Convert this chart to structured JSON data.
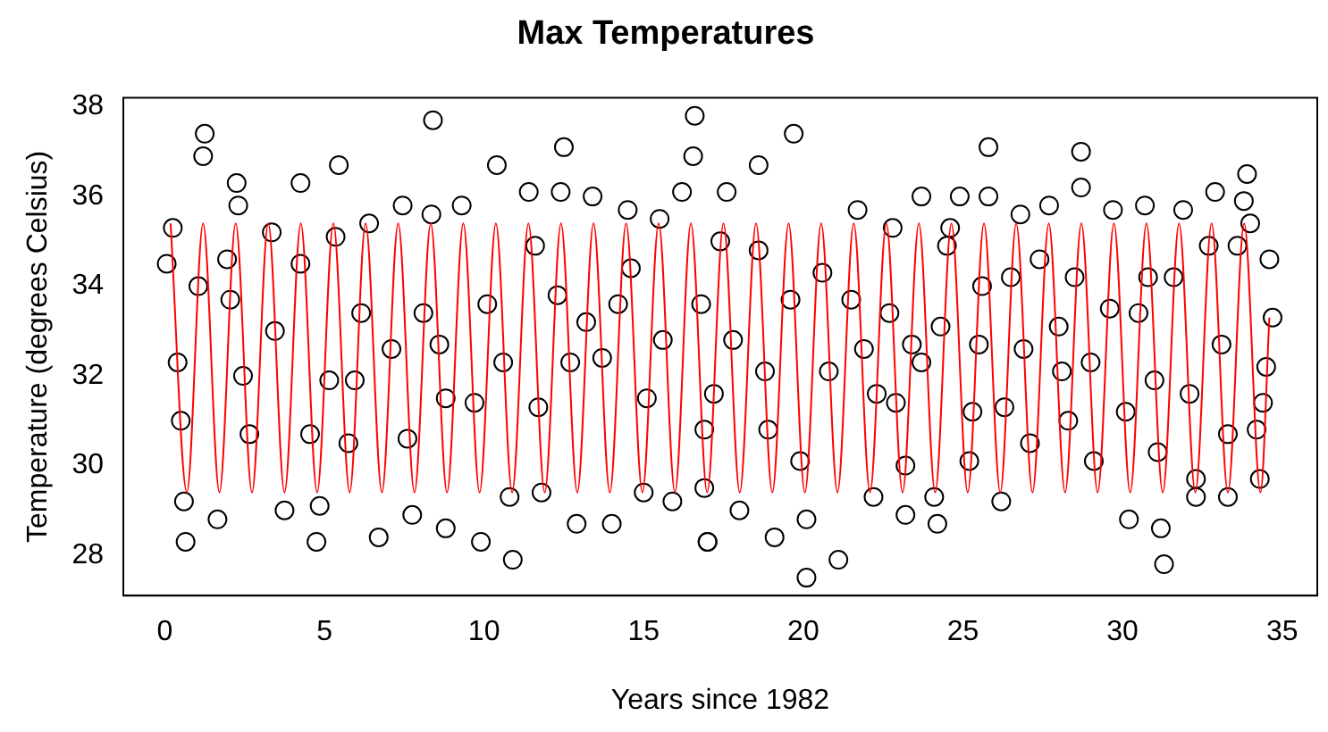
{
  "chart_data": {
    "type": "scatter",
    "title": "Max Temperatures",
    "xlabel": "Years since 1982",
    "ylabel": "Temperature (degrees Celsius)",
    "xlim": [
      -1.3,
      36.1
    ],
    "ylim": [
      27.1,
      38.2
    ],
    "xticks": [
      0,
      5,
      10,
      15,
      20,
      25,
      30,
      35
    ],
    "yticks": [
      28,
      30,
      32,
      34,
      36,
      38
    ],
    "grid": false,
    "legend": false,
    "series": [
      {
        "color": "#000000",
        "marker": "circle",
        "x": [
          0.06,
          0.25,
          0.4,
          0.5,
          0.6,
          0.65,
          1.05,
          1.2,
          1.25,
          1.65,
          1.95,
          2.05,
          2.25,
          2.3,
          2.45,
          2.65,
          3.35,
          3.45,
          3.75,
          4.25,
          4.25,
          4.55,
          4.75,
          4.85,
          5.15,
          5.35,
          5.45,
          5.75,
          5.95,
          6.15,
          6.4,
          6.7,
          7.1,
          7.45,
          7.6,
          7.75,
          8.1,
          8.35,
          8.4,
          8.6,
          8.8,
          8.8,
          9.3,
          9.7,
          9.9,
          10.1,
          10.4,
          10.6,
          10.8,
          10.9,
          11.4,
          11.6,
          11.7,
          11.8,
          12.3,
          12.4,
          12.5,
          12.7,
          12.9,
          13.2,
          13.4,
          13.7,
          14.0,
          14.2,
          14.5,
          14.6,
          15.0,
          15.1,
          15.5,
          15.6,
          15.9,
          16.2,
          16.55,
          16.6,
          16.8,
          16.9,
          16.9,
          17.0,
          17.0,
          17.2,
          17.4,
          17.6,
          17.8,
          18.0,
          18.6,
          18.6,
          18.8,
          18.9,
          19.1,
          19.6,
          19.7,
          19.9,
          20.1,
          20.1,
          20.6,
          20.8,
          21.1,
          21.5,
          21.7,
          21.9,
          22.2,
          22.3,
          22.7,
          22.8,
          22.9,
          23.2,
          23.2,
          23.4,
          23.7,
          23.7,
          24.1,
          24.2,
          24.3,
          24.5,
          24.6,
          24.9,
          25.2,
          25.3,
          25.5,
          25.6,
          25.8,
          25.8,
          26.2,
          26.3,
          26.5,
          26.8,
          26.9,
          27.1,
          27.4,
          27.7,
          28.0,
          28.1,
          28.3,
          28.5,
          28.7,
          28.7,
          29.0,
          29.1,
          29.6,
          29.7,
          30.1,
          30.2,
          30.5,
          30.7,
          30.8,
          31.0,
          31.1,
          31.2,
          31.3,
          31.6,
          31.9,
          32.1,
          32.3,
          32.3,
          32.7,
          32.9,
          33.1,
          33.3,
          33.3,
          33.6,
          33.8,
          33.9,
          34.0,
          34.2,
          34.3,
          34.4,
          34.5,
          34.6,
          34.7
        ],
        "values": [
          34.5,
          35.3,
          32.3,
          31.0,
          29.2,
          28.3,
          34.0,
          36.9,
          37.4,
          28.8,
          34.6,
          33.7,
          36.3,
          35.8,
          32.0,
          30.7,
          35.2,
          33.0,
          29.0,
          36.3,
          34.5,
          30.7,
          28.3,
          29.1,
          31.9,
          35.1,
          36.7,
          30.5,
          31.9,
          33.4,
          35.4,
          28.4,
          32.6,
          35.8,
          30.6,
          28.9,
          33.4,
          35.6,
          37.7,
          32.7,
          31.5,
          28.6,
          35.8,
          31.4,
          28.3,
          33.6,
          36.7,
          32.3,
          29.3,
          27.9,
          36.1,
          34.9,
          31.3,
          29.4,
          33.8,
          36.1,
          37.1,
          32.3,
          28.7,
          33.2,
          36.0,
          32.4,
          28.7,
          33.6,
          35.7,
          34.4,
          29.4,
          31.5,
          35.5,
          32.8,
          29.2,
          36.1,
          36.9,
          37.8,
          33.6,
          30.8,
          29.5,
          28.3,
          28.3,
          31.6,
          35.0,
          36.1,
          32.8,
          29.0,
          36.7,
          34.8,
          32.1,
          30.8,
          28.4,
          33.7,
          37.4,
          30.1,
          28.8,
          27.5,
          34.3,
          32.1,
          27.9,
          33.7,
          35.7,
          32.6,
          29.3,
          31.6,
          33.4,
          35.3,
          31.4,
          30.0,
          28.9,
          32.7,
          36.0,
          32.3,
          29.3,
          28.7,
          33.1,
          34.9,
          35.3,
          36.0,
          30.1,
          31.2,
          32.7,
          34.0,
          37.1,
          36.0,
          29.2,
          31.3,
          34.2,
          35.6,
          32.6,
          30.5,
          34.6,
          35.8,
          33.1,
          32.1,
          31.0,
          34.2,
          37.0,
          36.2,
          32.3,
          30.1,
          33.5,
          35.7,
          31.2,
          28.8,
          33.4,
          35.8,
          34.2,
          31.9,
          30.3,
          28.6,
          27.8,
          34.2,
          35.7,
          31.6,
          29.3,
          29.7,
          34.9,
          36.1,
          32.7,
          30.7,
          29.3,
          34.9,
          35.9,
          36.5,
          35.4,
          30.8,
          29.7,
          31.4,
          32.2,
          34.6,
          33.3
        ]
      },
      {
        "type": "line",
        "color": "#ff0000",
        "marker": "none",
        "x": [
          0.18,
          0.69,
          1.2,
          1.71,
          2.22,
          2.73,
          3.24,
          3.75,
          4.26,
          4.77,
          5.28,
          5.79,
          6.29,
          6.8,
          7.31,
          7.82,
          8.33,
          8.84,
          9.35,
          9.86,
          10.37,
          10.88,
          11.39,
          11.9,
          12.41,
          12.92,
          13.43,
          13.94,
          14.45,
          14.96,
          15.47,
          15.98,
          16.48,
          16.99,
          17.5,
          18.01,
          18.52,
          19.03,
          19.54,
          20.05,
          20.56,
          21.07,
          21.58,
          22.09,
          22.6,
          23.11,
          23.62,
          24.13,
          24.64,
          25.15,
          25.66,
          26.17,
          26.67,
          27.18,
          27.69,
          28.2,
          28.71,
          29.22,
          29.73,
          30.24,
          30.75,
          31.26,
          31.77,
          32.28,
          32.79,
          33.3,
          33.81,
          34.32,
          34.6
        ],
        "values": [
          35.4,
          29.4,
          35.4,
          29.4,
          35.4,
          29.4,
          35.4,
          29.4,
          35.4,
          29.4,
          35.4,
          29.4,
          35.4,
          29.4,
          35.4,
          29.4,
          35.4,
          29.4,
          35.4,
          29.4,
          35.4,
          29.4,
          35.4,
          29.4,
          35.4,
          29.4,
          35.4,
          29.4,
          35.4,
          29.4,
          35.4,
          29.4,
          35.4,
          29.4,
          35.4,
          29.4,
          35.4,
          29.4,
          35.4,
          29.4,
          35.4,
          29.4,
          35.4,
          29.4,
          35.4,
          29.4,
          35.4,
          29.4,
          35.4,
          29.4,
          35.4,
          29.4,
          35.4,
          29.4,
          35.4,
          29.4,
          35.4,
          29.4,
          35.4,
          29.4,
          35.4,
          29.4,
          35.4,
          29.4,
          35.4,
          29.4,
          35.4,
          29.4,
          33.3
        ]
      }
    ]
  }
}
